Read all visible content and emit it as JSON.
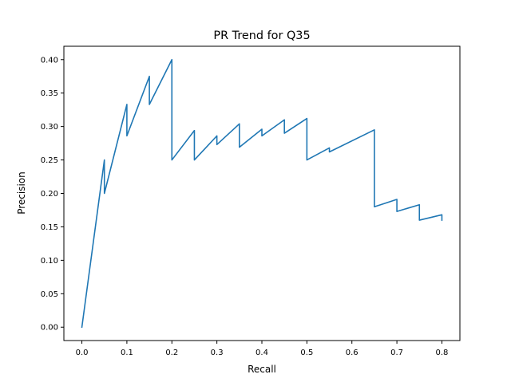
{
  "chart_data": {
    "type": "line",
    "title": "PR Trend for Q35",
    "xlabel": "Recall",
    "ylabel": "Precision",
    "xlim": [
      -0.04,
      0.84
    ],
    "ylim": [
      -0.02,
      0.42
    ],
    "xticks": [
      0.0,
      0.1,
      0.2,
      0.3,
      0.4,
      0.5,
      0.6,
      0.7,
      0.8
    ],
    "xtick_labels": [
      "0.0",
      "0.1",
      "0.2",
      "0.3",
      "0.4",
      "0.5",
      "0.6",
      "0.7",
      "0.8"
    ],
    "yticks": [
      0.0,
      0.05,
      0.1,
      0.15,
      0.2,
      0.25,
      0.3,
      0.35,
      0.4
    ],
    "ytick_labels": [
      "0.00",
      "0.05",
      "0.10",
      "0.15",
      "0.20",
      "0.25",
      "0.30",
      "0.35",
      "0.40"
    ],
    "grid": false,
    "series": [
      {
        "color": "#1f77b4",
        "x": [
          0.0,
          0.05,
          0.05,
          0.1,
          0.1,
          0.15,
          0.15,
          0.2,
          0.2,
          0.25,
          0.25,
          0.3,
          0.3,
          0.35,
          0.35,
          0.4,
          0.4,
          0.45,
          0.45,
          0.5,
          0.5,
          0.55,
          0.55,
          0.65,
          0.65,
          0.7,
          0.7,
          0.75,
          0.75,
          0.8,
          0.8
        ],
        "y": [
          0.0,
          0.25,
          0.2,
          0.333,
          0.286,
          0.375,
          0.333,
          0.4,
          0.25,
          0.294,
          0.25,
          0.286,
          0.273,
          0.304,
          0.269,
          0.296,
          0.286,
          0.31,
          0.29,
          0.312,
          0.25,
          0.268,
          0.262,
          0.295,
          0.18,
          0.191,
          0.173,
          0.183,
          0.16,
          0.168,
          0.16
        ]
      }
    ]
  }
}
